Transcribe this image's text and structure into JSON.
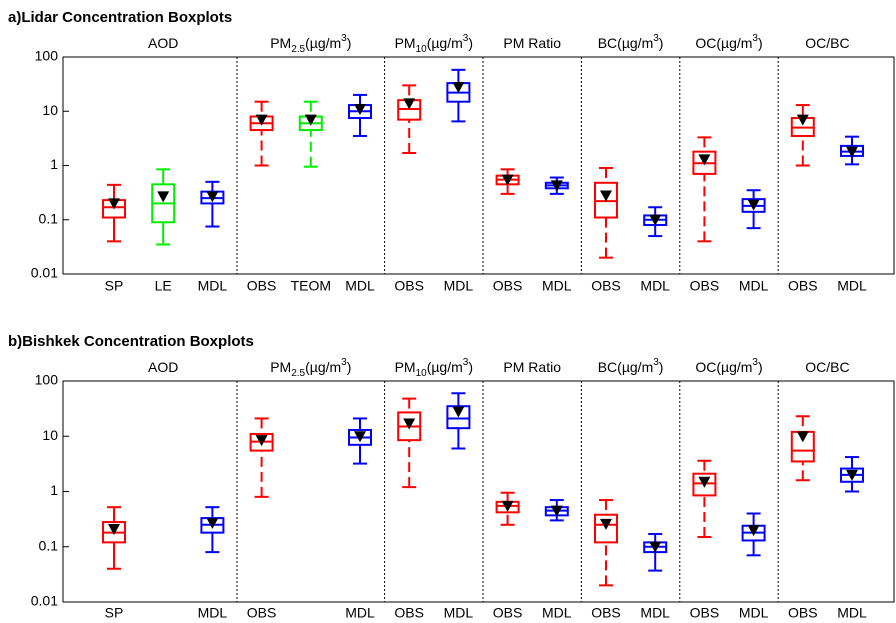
{
  "chart_data": [
    {
      "type": "box",
      "title": "a)Lidar Concentration Boxplots",
      "log_y": true,
      "ylim": [
        0.01,
        100
      ],
      "yticks": [
        0.01,
        0.1,
        1,
        10,
        100
      ],
      "groups": [
        {
          "size": 3,
          "label": [
            {
              "text": "AOD"
            }
          ]
        },
        {
          "size": 3,
          "label": [
            {
              "text": "PM"
            },
            {
              "text": "2.5",
              "shift": "sub"
            },
            {
              "text": "(µg/m"
            },
            {
              "text": "3",
              "shift": "sup"
            },
            {
              "text": ")"
            }
          ]
        },
        {
          "size": 2,
          "label": [
            {
              "text": "PM"
            },
            {
              "text": "10",
              "shift": "sub"
            },
            {
              "text": "(µg/m"
            },
            {
              "text": "3",
              "shift": "sup"
            },
            {
              "text": ")"
            }
          ]
        },
        {
          "size": 2,
          "label": [
            {
              "text": "PM Ratio"
            }
          ]
        },
        {
          "size": 2,
          "label": [
            {
              "text": "BC(µg/m"
            },
            {
              "text": "3",
              "shift": "sup"
            },
            {
              "text": ")"
            }
          ]
        },
        {
          "size": 2,
          "label": [
            {
              "text": "OC(µg/m"
            },
            {
              "text": "3",
              "shift": "sup"
            },
            {
              "text": ")"
            }
          ]
        },
        {
          "size": 2,
          "label": [
            {
              "text": "OC/BC"
            }
          ]
        }
      ],
      "categories": [
        "SP",
        "LE",
        "MDL",
        "OBS",
        "TEOM",
        "MDL",
        "OBS",
        "MDL",
        "OBS",
        "MDL",
        "OBS",
        "MDL",
        "OBS",
        "MDL",
        "OBS",
        "MDL"
      ],
      "boxes": [
        {
          "color": "#ff0000",
          "dashed": false,
          "whislo": 0.04,
          "q1": 0.11,
          "med": 0.17,
          "q3": 0.23,
          "whishi": 0.44,
          "mean": 0.2
        },
        {
          "color": "#00ee00",
          "dashed": false,
          "whislo": 0.035,
          "q1": 0.09,
          "med": 0.2,
          "q3": 0.45,
          "whishi": 0.85,
          "mean": 0.27
        },
        {
          "color": "#0000ff",
          "dashed": false,
          "whislo": 0.075,
          "q1": 0.2,
          "med": 0.25,
          "q3": 0.33,
          "whishi": 0.5,
          "mean": 0.27
        },
        {
          "color": "#ff0000",
          "dashed": true,
          "whislo": 1.0,
          "q1": 4.5,
          "med": 6,
          "q3": 8,
          "whishi": 15,
          "mean": 7
        },
        {
          "color": "#00ee00",
          "dashed": true,
          "whislo": 0.95,
          "q1": 4.5,
          "med": 6,
          "q3": 8,
          "whishi": 15,
          "mean": 7
        },
        {
          "color": "#0000ff",
          "dashed": false,
          "whislo": 3.5,
          "q1": 7.5,
          "med": 10,
          "q3": 13,
          "whishi": 20,
          "mean": 11
        },
        {
          "color": "#ff0000",
          "dashed": true,
          "whislo": 1.7,
          "q1": 7,
          "med": 11,
          "q3": 16,
          "whishi": 30,
          "mean": 14
        },
        {
          "color": "#0000ff",
          "dashed": false,
          "whislo": 6.5,
          "q1": 15,
          "med": 22,
          "q3": 33,
          "whishi": 58,
          "mean": 28
        },
        {
          "color": "#ff0000",
          "dashed": true,
          "whislo": 0.3,
          "q1": 0.45,
          "med": 0.55,
          "q3": 0.65,
          "whishi": 0.85,
          "mean": 0.55
        },
        {
          "color": "#0000ff",
          "dashed": false,
          "whislo": 0.3,
          "q1": 0.38,
          "med": 0.43,
          "q3": 0.48,
          "whishi": 0.6,
          "mean": 0.43
        },
        {
          "color": "#ff0000",
          "dashed": true,
          "whislo": 0.02,
          "q1": 0.11,
          "med": 0.22,
          "q3": 0.48,
          "whishi": 0.9,
          "mean": 0.28
        },
        {
          "color": "#0000ff",
          "dashed": false,
          "whislo": 0.05,
          "q1": 0.08,
          "med": 0.1,
          "q3": 0.12,
          "whishi": 0.17,
          "mean": 0.1
        },
        {
          "color": "#ff0000",
          "dashed": true,
          "whislo": 0.04,
          "q1": 0.7,
          "med": 1.1,
          "q3": 1.8,
          "whishi": 3.3,
          "mean": 1.3
        },
        {
          "color": "#0000ff",
          "dashed": false,
          "whislo": 0.07,
          "q1": 0.14,
          "med": 0.18,
          "q3": 0.24,
          "whishi": 0.35,
          "mean": 0.19
        },
        {
          "color": "#ff0000",
          "dashed": true,
          "whislo": 1.0,
          "q1": 3.5,
          "med": 5,
          "q3": 7.5,
          "whishi": 13,
          "mean": 7
        },
        {
          "color": "#0000ff",
          "dashed": false,
          "whislo": 1.05,
          "q1": 1.5,
          "med": 1.8,
          "q3": 2.3,
          "whishi": 3.4,
          "mean": 1.8
        }
      ]
    },
    {
      "type": "box",
      "title": "b)Bishkek Concentration Boxplots",
      "log_y": true,
      "ylim": [
        0.01,
        100
      ],
      "yticks": [
        0.01,
        0.1,
        1,
        10,
        100
      ],
      "groups": [
        {
          "size": 3,
          "label": [
            {
              "text": "AOD"
            }
          ]
        },
        {
          "size": 3,
          "label": [
            {
              "text": "PM"
            },
            {
              "text": "2.5",
              "shift": "sub"
            },
            {
              "text": "(µg/m"
            },
            {
              "text": "3",
              "shift": "sup"
            },
            {
              "text": ")"
            }
          ]
        },
        {
          "size": 2,
          "label": [
            {
              "text": "PM"
            },
            {
              "text": "10",
              "shift": "sub"
            },
            {
              "text": "(µg/m"
            },
            {
              "text": "3",
              "shift": "sup"
            },
            {
              "text": ")"
            }
          ]
        },
        {
          "size": 2,
          "label": [
            {
              "text": "PM Ratio"
            }
          ]
        },
        {
          "size": 2,
          "label": [
            {
              "text": "BC(µg/m"
            },
            {
              "text": "3",
              "shift": "sup"
            },
            {
              "text": ")"
            }
          ]
        },
        {
          "size": 2,
          "label": [
            {
              "text": "OC(µg/m"
            },
            {
              "text": "3",
              "shift": "sup"
            },
            {
              "text": ")"
            }
          ]
        },
        {
          "size": 2,
          "label": [
            {
              "text": "OC/BC"
            }
          ]
        }
      ],
      "categories": [
        "SP",
        null,
        "MDL",
        "OBS",
        null,
        "MDL",
        "OBS",
        "MDL",
        "OBS",
        "MDL",
        "OBS",
        "MDL",
        "OBS",
        "MDL",
        "OBS",
        "MDL"
      ],
      "boxes": [
        {
          "color": "#ff0000",
          "dashed": false,
          "whislo": 0.04,
          "q1": 0.12,
          "med": 0.18,
          "q3": 0.28,
          "whishi": 0.52,
          "mean": 0.21
        },
        null,
        {
          "color": "#0000ff",
          "dashed": false,
          "whislo": 0.08,
          "q1": 0.18,
          "med": 0.25,
          "q3": 0.33,
          "whishi": 0.52,
          "mean": 0.27
        },
        {
          "color": "#ff0000",
          "dashed": true,
          "whislo": 0.8,
          "q1": 5.5,
          "med": 8,
          "q3": 11,
          "whishi": 21,
          "mean": 8.5
        },
        null,
        {
          "color": "#0000ff",
          "dashed": false,
          "whislo": 3.2,
          "q1": 7,
          "med": 9.5,
          "q3": 13,
          "whishi": 21,
          "mean": 10
        },
        {
          "color": "#ff0000",
          "dashed": true,
          "whislo": 1.2,
          "q1": 8.5,
          "med": 15,
          "q3": 27,
          "whishi": 48,
          "mean": 17
        },
        {
          "color": "#0000ff",
          "dashed": false,
          "whislo": 6,
          "q1": 14,
          "med": 21,
          "q3": 35,
          "whishi": 60,
          "mean": 28
        },
        {
          "color": "#ff0000",
          "dashed": true,
          "whislo": 0.25,
          "q1": 0.42,
          "med": 0.55,
          "q3": 0.65,
          "whishi": 0.95,
          "mean": 0.55
        },
        {
          "color": "#0000ff",
          "dashed": false,
          "whislo": 0.3,
          "q1": 0.37,
          "med": 0.45,
          "q3": 0.52,
          "whishi": 0.7,
          "mean": 0.45
        },
        {
          "color": "#ff0000",
          "dashed": true,
          "whislo": 0.02,
          "q1": 0.12,
          "med": 0.25,
          "q3": 0.38,
          "whishi": 0.7,
          "mean": 0.26
        },
        {
          "color": "#0000ff",
          "dashed": false,
          "whislo": 0.037,
          "q1": 0.08,
          "med": 0.1,
          "q3": 0.12,
          "whishi": 0.17,
          "mean": 0.1
        },
        {
          "color": "#ff0000",
          "dashed": true,
          "whislo": 0.15,
          "q1": 0.85,
          "med": 1.4,
          "q3": 2.1,
          "whishi": 3.6,
          "mean": 1.5
        },
        {
          "color": "#0000ff",
          "dashed": false,
          "whislo": 0.07,
          "q1": 0.13,
          "med": 0.18,
          "q3": 0.24,
          "whishi": 0.4,
          "mean": 0.2
        },
        {
          "color": "#ff0000",
          "dashed": true,
          "whislo": 1.6,
          "q1": 3.5,
          "med": 5.5,
          "q3": 12,
          "whishi": 23,
          "mean": 10
        },
        {
          "color": "#0000ff",
          "dashed": false,
          "whislo": 1,
          "q1": 1.5,
          "med": 2,
          "q3": 2.6,
          "whishi": 4.2,
          "mean": 2
        }
      ]
    }
  ]
}
